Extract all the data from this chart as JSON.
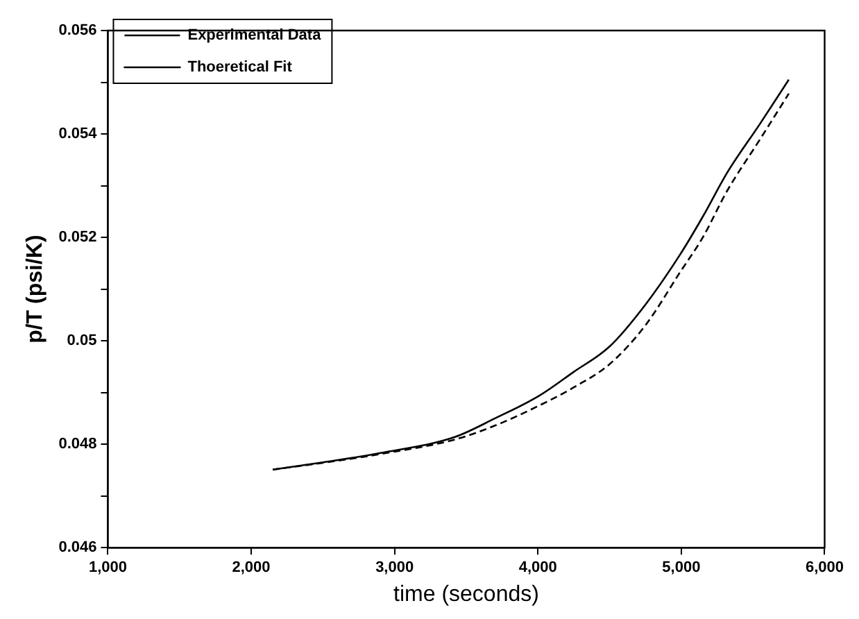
{
  "chart_data": {
    "type": "line",
    "xlabel": "time (seconds)",
    "ylabel": "p/T (psi/K)",
    "xlim": [
      1000,
      6000
    ],
    "xticks": [
      {
        "value": 1000,
        "label": "1,000"
      },
      {
        "value": 2000,
        "label": "2,000"
      },
      {
        "value": 3000,
        "label": "3,000"
      },
      {
        "value": 4000,
        "label": "4,000"
      },
      {
        "value": 5000,
        "label": "5,000"
      },
      {
        "value": 6000,
        "label": "6,000"
      }
    ],
    "ylim": [
      0.046,
      0.056
    ],
    "yticks": [
      0.046,
      {
        "value": 0.047,
        "label": null
      },
      0.048,
      {
        "value": 0.049,
        "label": null
      },
      0.05,
      {
        "value": 0.051,
        "label": null
      },
      0.052,
      {
        "value": 0.053,
        "label": null
      },
      0.054,
      {
        "value": 0.055,
        "label": null
      },
      0.056
    ],
    "grid": false,
    "legend": "top left",
    "marker": "none",
    "series": [
      {
        "name": "Experimental Data",
        "color": "#000000",
        "line_style": "dashed",
        "x": [
          2150,
          2500,
          2900,
          3420,
          3700,
          4010,
          4250,
          4500,
          4750,
          4990,
          5150,
          5320,
          5550,
          5750
        ],
        "values": [
          0.04751,
          0.04764,
          0.04781,
          0.04809,
          0.04836,
          0.04875,
          0.0491,
          0.04955,
          0.0503,
          0.05132,
          0.052,
          0.0529,
          0.0539,
          0.05478
        ]
      },
      {
        "name": "Thoeretical Fit",
        "color": "#000000",
        "line_style": "solid",
        "x": [
          2150,
          2500,
          2902,
          3420,
          3700,
          4010,
          4250,
          4500,
          4750,
          4990,
          5150,
          5320,
          5550,
          5750
        ],
        "values": [
          0.04751,
          0.04765,
          0.04783,
          0.04814,
          0.0485,
          0.04894,
          0.0494,
          0.04989,
          0.0507,
          0.05166,
          0.0524,
          0.05325,
          0.0542,
          0.05505
        ]
      }
    ]
  }
}
